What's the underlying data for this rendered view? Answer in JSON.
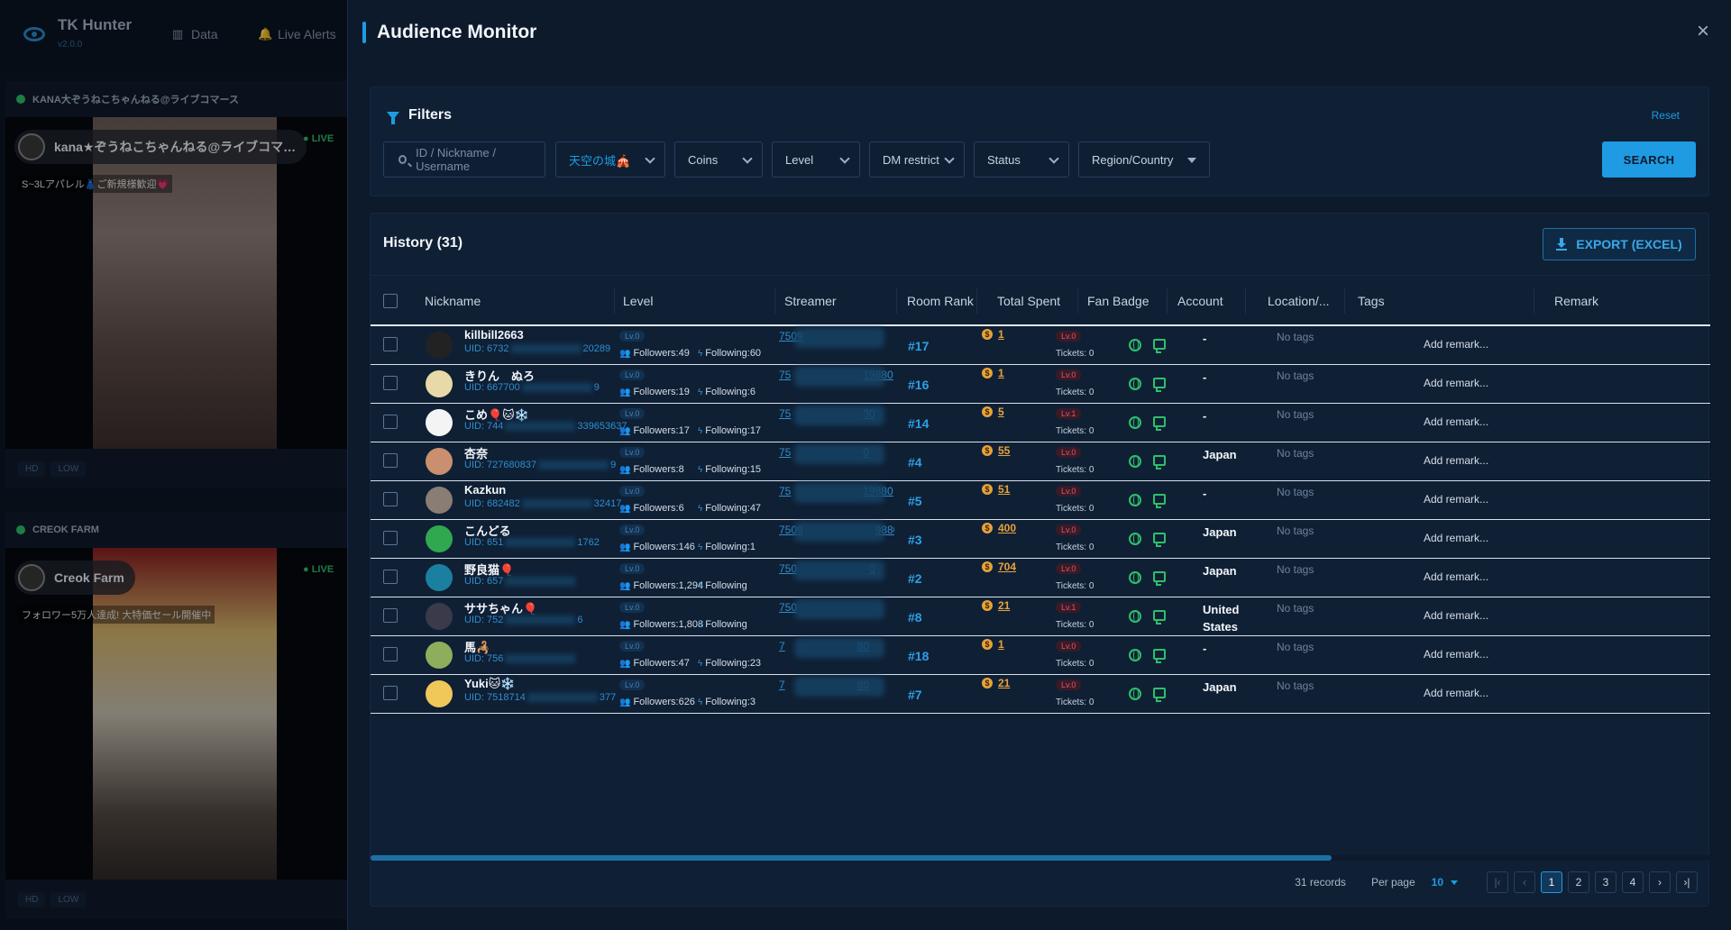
{
  "app": {
    "brand": "TK Hunter",
    "version": "v2.0.0",
    "nav": [
      {
        "label": "Data",
        "icon": "chart-icon"
      },
      {
        "label": "Live Alerts",
        "icon": "bell-icon"
      }
    ]
  },
  "streams": [
    {
      "header": "KANA大ぞうねこちゃんねる@ライブコマース",
      "host": "kana★ぞうねこちゃんねる@ライブコマ…",
      "desc": "S~3Lアパレル👗ご新規様歓迎💗",
      "live": "LIVE",
      "qualities": [
        "HD",
        "LOW"
      ]
    },
    {
      "header": "CREOK FARM",
      "host": "Creok Farm",
      "desc": "フォロワー5万人達成! 大特価セール開催中",
      "live": "LIVE",
      "qualities": [
        "HD",
        "LOW"
      ]
    }
  ],
  "modal": {
    "title": "Audience Monitor",
    "close": "×",
    "filters": {
      "title": "Filters",
      "reset": "Reset",
      "search_placeholder": "ID / Nickname / Username",
      "room": "天空の城🎪",
      "coins": "Coins",
      "level": "Level",
      "dm": "DM restrict",
      "status": "Status",
      "region": "Region/Country",
      "search_button": "SEARCH"
    },
    "history": {
      "title": "History (31)",
      "export": "EXPORT (EXCEL)",
      "columns": [
        "Nickname",
        "Level",
        "Streamer",
        "Room Rank",
        "Total Spent",
        "Fan Badge",
        "Account",
        "Location/...",
        "Tags",
        "Remark"
      ],
      "rows": [
        {
          "nick": "killbill2663",
          "uid": "UID: 6732",
          "uid2": "20289",
          "level": "Lv.0",
          "followers": "Followers:49",
          "following": "Following:60",
          "streamer": "7509",
          "streamer2": "",
          "rank": "#17",
          "spent": "1",
          "fan": "Lv.0",
          "tickets": "Tickets: 0",
          "location": "-",
          "tags": "No tags",
          "remark": "Add remark...",
          "av": "#222"
        },
        {
          "nick": "きりん　ぬろ",
          "uid": "UID: 667700",
          "uid2": "9",
          "level": "Lv.0",
          "followers": "Followers:19",
          "following": "Following:6",
          "streamer": "75",
          "streamer2": "19880",
          "rank": "#16",
          "spent": "1",
          "fan": "Lv.0",
          "tickets": "Tickets: 0",
          "location": "-",
          "tags": "No tags",
          "remark": "Add remark...",
          "av": "#e8d9a8"
        },
        {
          "nick": "こめ🎈🐱❄️",
          "uid": "UID: 744",
          "uid2": "339653637",
          "level": "Lv.0",
          "followers": "Followers:17",
          "following": "Following:17",
          "streamer": "75",
          "streamer2": "30",
          "rank": "#14",
          "spent": "5",
          "fan": "Lv.1",
          "tickets": "Tickets: 0",
          "location": "-",
          "tags": "No tags",
          "remark": "Add remark...",
          "av": "#f4f4f4"
        },
        {
          "nick": "杏奈",
          "uid": "UID: 727680837",
          "uid2": "9",
          "level": "Lv.0",
          "followers": "Followers:8",
          "following": "Following:15",
          "streamer": "75",
          "streamer2": "0",
          "rank": "#4",
          "spent": "55",
          "fan": "Lv.0",
          "tickets": "Tickets: 0",
          "location": "Japan",
          "tags": "No tags",
          "remark": "Add remark...",
          "av": "#c98f6e"
        },
        {
          "nick": "Kazkun",
          "uid": "UID: 682482",
          "uid2": "32417",
          "level": "Lv.0",
          "followers": "Followers:6",
          "following": "Following:47",
          "streamer": "75",
          "streamer2": "19880",
          "rank": "#5",
          "spent": "51",
          "fan": "Lv.0",
          "tickets": "Tickets: 0",
          "location": "-",
          "tags": "No tags",
          "remark": "Add remark...",
          "av": "#8a7d74"
        },
        {
          "nick": "こんどる",
          "uid": "UID: 651",
          "uid2": "1762",
          "level": "Lv.0",
          "followers": "Followers:146",
          "following": "Following:1",
          "streamer": "7509",
          "streamer2": "9880",
          "rank": "#3",
          "spent": "400",
          "fan": "Lv.0",
          "tickets": "Tickets: 0",
          "location": "Japan",
          "tags": "No tags",
          "remark": "Add remark...",
          "av": "#2fa84f"
        },
        {
          "nick": "野良猫🎈",
          "uid": "UID: 657",
          "uid2": "",
          "level": "Lv.0",
          "followers": "Followers:1,294",
          "following": "Following",
          "streamer": "750",
          "streamer2": "0",
          "rank": "#2",
          "spent": "704",
          "fan": "Lv.0",
          "tickets": "Tickets: 0",
          "location": "Japan",
          "tags": "No tags",
          "remark": "Add remark...",
          "av": "#1b7fa0"
        },
        {
          "nick": "ササちゃん🎈",
          "uid": "UID: 752",
          "uid2": "6",
          "level": "Lv.0",
          "followers": "Followers:1,808",
          "following": "Following",
          "streamer": "750",
          "streamer2": "",
          "rank": "#8",
          "spent": "21",
          "fan": "Lv.1",
          "tickets": "Tickets: 0",
          "location": "United States",
          "tags": "No tags",
          "remark": "Add remark...",
          "av": "#3a3a4a"
        },
        {
          "nick": "馬🦂",
          "uid": "UID: 756",
          "uid2": "",
          "level": "Lv.0",
          "followers": "Followers:47",
          "following": "Following:23",
          "streamer": "7",
          "streamer2": "80",
          "rank": "#18",
          "spent": "1",
          "fan": "Lv.0",
          "tickets": "Tickets: 0",
          "location": "-",
          "tags": "No tags",
          "remark": "Add remark...",
          "av": "#8fae5c"
        },
        {
          "nick": "Yuki🐱❄️",
          "uid": "UID: 7518714",
          "uid2": "377",
          "level": "Lv.0",
          "followers": "Followers:626",
          "following": "Following:3",
          "streamer": "7",
          "streamer2": "80",
          "rank": "#7",
          "spent": "21",
          "fan": "Lv.0",
          "tickets": "Tickets: 0",
          "location": "Japan",
          "tags": "No tags",
          "remark": "Add remark...",
          "av": "#f0c85a"
        }
      ],
      "records": "31 records",
      "per_page_label": "Per page",
      "per_page": "10",
      "pages": [
        "1",
        "2",
        "3",
        "4"
      ],
      "current_page": "1"
    }
  }
}
